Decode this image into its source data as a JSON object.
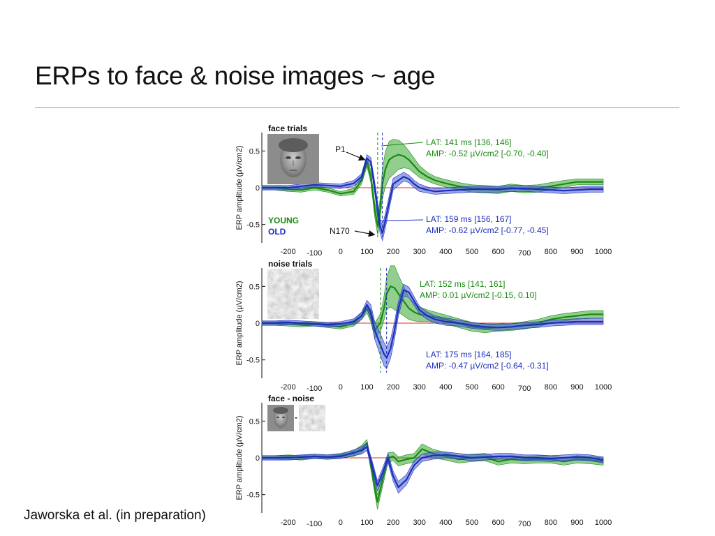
{
  "slide": {
    "title": "ERPs to face & noise images ~ age",
    "citation": "Jaworska et al. (in preparation)"
  },
  "colors": {
    "young": "#1a8a12",
    "young_fill": "#39a832",
    "old": "#1b2fbd",
    "old_fill": "#4b5fd6",
    "zero_line": "#e0302a"
  },
  "chart_data": [
    {
      "type": "line",
      "title": "face trials",
      "image": "face-thumbnail",
      "ylabel": "ERP amplitude (µV/cm2)",
      "xlim": [
        -300,
        1000
      ],
      "ylim": [
        -0.75,
        0.75
      ],
      "x_ticks": [
        -200,
        -100,
        0,
        100,
        200,
        300,
        400,
        500,
        600,
        700,
        800,
        900,
        1000
      ],
      "y_ticks": [
        0.5,
        0,
        -0.5
      ],
      "y_tick_labels": [
        "0.5",
        "0",
        "-0.5"
      ],
      "x": [
        -300,
        -250,
        -200,
        -150,
        -100,
        -50,
        0,
        50,
        80,
        100,
        115,
        130,
        141,
        150,
        159,
        170,
        185,
        200,
        220,
        240,
        260,
        280,
        300,
        330,
        360,
        400,
        450,
        500,
        550,
        600,
        650,
        700,
        750,
        800,
        850,
        900,
        950,
        1000
      ],
      "series": [
        {
          "name": "YOUNG",
          "color": "#1a8a12",
          "values": [
            0.0,
            0.0,
            -0.02,
            -0.03,
            0.0,
            -0.03,
            -0.08,
            -0.05,
            0.1,
            0.35,
            0.15,
            -0.3,
            -0.52,
            -0.3,
            0.05,
            0.25,
            0.38,
            0.42,
            0.45,
            0.43,
            0.38,
            0.3,
            0.22,
            0.15,
            0.1,
            0.06,
            0.02,
            -0.01,
            -0.02,
            -0.03,
            0.0,
            -0.02,
            -0.01,
            0.02,
            0.05,
            0.08,
            0.08,
            0.08
          ],
          "ci": [
            0.03,
            0.03,
            0.03,
            0.03,
            0.03,
            0.03,
            0.03,
            0.04,
            0.05,
            0.06,
            0.08,
            0.1,
            0.12,
            0.15,
            0.2,
            0.24,
            0.25,
            0.24,
            0.2,
            0.16,
            0.12,
            0.1,
            0.08,
            0.06,
            0.05,
            0.05,
            0.05,
            0.05,
            0.05,
            0.05,
            0.05,
            0.05,
            0.05,
            0.05,
            0.05,
            0.04,
            0.04,
            0.04
          ]
        },
        {
          "name": "OLD",
          "color": "#1b2fbd",
          "values": [
            0.0,
            0.0,
            0.0,
            0.02,
            0.04,
            0.03,
            0.02,
            0.06,
            0.15,
            0.4,
            0.35,
            0.0,
            -0.3,
            -0.52,
            -0.62,
            -0.45,
            -0.2,
            0.05,
            0.1,
            0.15,
            0.12,
            0.05,
            0.0,
            -0.03,
            -0.05,
            -0.04,
            -0.03,
            -0.02,
            -0.02,
            -0.02,
            -0.01,
            -0.01,
            -0.02,
            -0.03,
            -0.04,
            -0.03,
            -0.02,
            -0.02
          ],
          "ci": [
            0.03,
            0.03,
            0.03,
            0.03,
            0.03,
            0.03,
            0.03,
            0.04,
            0.04,
            0.05,
            0.06,
            0.08,
            0.1,
            0.1,
            0.1,
            0.1,
            0.09,
            0.08,
            0.07,
            0.06,
            0.05,
            0.05,
            0.05,
            0.04,
            0.04,
            0.04,
            0.04,
            0.04,
            0.04,
            0.04,
            0.04,
            0.04,
            0.04,
            0.04,
            0.04,
            0.04,
            0.04,
            0.04
          ]
        }
      ],
      "latency_markers": [
        {
          "x": 141,
          "color": "#1a8a12"
        },
        {
          "x": 159,
          "color": "#1b2fbd"
        }
      ],
      "annotations": [
        {
          "text": "P1",
          "color": "#111111",
          "arrow_to_x": 100,
          "arrow_to_y": 0.38
        },
        {
          "text": "N170",
          "color": "#111111",
          "arrow_to_x": 145,
          "arrow_to_y": -0.62
        },
        {
          "lines": [
            "LAT: 141 ms [136, 146]",
            "AMP: -0.52 µV/cm2 [-0.70, -0.40]"
          ],
          "color": "#1a8a12",
          "pointer_x": 155,
          "pointer_y": 0.62
        },
        {
          "lines": [
            "LAT: 159 ms [156, 167]",
            "AMP: -0.62 µV/cm2 [-0.77, -0.45]"
          ],
          "color": "#1b2fbd",
          "pointer_x": 165,
          "pointer_y": -0.45
        }
      ],
      "legend": [
        {
          "label": "YOUNG",
          "color": "#1a8a12"
        },
        {
          "label": "OLD",
          "color": "#1b2fbd"
        }
      ]
    },
    {
      "type": "line",
      "title": "noise trials",
      "image": "noise-thumbnail",
      "ylabel": "ERP amplitude (µV/cm2)",
      "xlim": [
        -300,
        1000
      ],
      "ylim": [
        -0.75,
        0.75
      ],
      "x_ticks": [
        -200,
        -100,
        0,
        100,
        200,
        300,
        400,
        500,
        600,
        700,
        800,
        900,
        1000
      ],
      "y_ticks": [
        0.5,
        0,
        -0.5
      ],
      "y_tick_labels": [
        "0.5",
        "0",
        "-0.5"
      ],
      "x": [
        -300,
        -250,
        -200,
        -150,
        -100,
        -50,
        0,
        50,
        80,
        100,
        115,
        130,
        152,
        165,
        175,
        190,
        205,
        220,
        240,
        260,
        280,
        300,
        330,
        360,
        400,
        450,
        500,
        550,
        600,
        650,
        700,
        750,
        800,
        850,
        900,
        950,
        1000
      ],
      "series": [
        {
          "name": "YOUNG",
          "color": "#1a8a12",
          "values": [
            0.0,
            0.0,
            -0.01,
            -0.02,
            -0.01,
            -0.03,
            -0.05,
            0.0,
            0.1,
            0.2,
            0.1,
            -0.1,
            0.01,
            0.2,
            0.4,
            0.5,
            0.48,
            0.4,
            0.3,
            0.2,
            0.15,
            0.12,
            0.1,
            0.08,
            0.05,
            0.0,
            -0.05,
            -0.07,
            -0.06,
            -0.05,
            -0.03,
            0.0,
            0.05,
            0.08,
            0.1,
            0.12,
            0.12
          ],
          "ci": [
            0.03,
            0.03,
            0.03,
            0.03,
            0.03,
            0.03,
            0.03,
            0.04,
            0.05,
            0.06,
            0.08,
            0.1,
            0.12,
            0.16,
            0.22,
            0.28,
            0.3,
            0.25,
            0.2,
            0.15,
            0.12,
            0.1,
            0.08,
            0.07,
            0.06,
            0.06,
            0.06,
            0.06,
            0.05,
            0.05,
            0.05,
            0.05,
            0.05,
            0.05,
            0.05,
            0.05,
            0.05
          ]
        },
        {
          "name": "OLD",
          "color": "#1b2fbd",
          "values": [
            0.0,
            0.0,
            0.01,
            0.0,
            -0.01,
            -0.02,
            -0.01,
            0.02,
            0.1,
            0.25,
            0.15,
            -0.1,
            -0.3,
            -0.42,
            -0.47,
            -0.35,
            -0.1,
            0.2,
            0.45,
            0.42,
            0.3,
            0.18,
            0.1,
            0.05,
            0.02,
            0.0,
            -0.03,
            -0.05,
            -0.06,
            -0.05,
            -0.03,
            -0.02,
            0.0,
            0.01,
            0.02,
            0.02,
            0.02
          ],
          "ci": [
            0.03,
            0.03,
            0.03,
            0.03,
            0.03,
            0.03,
            0.03,
            0.04,
            0.05,
            0.06,
            0.1,
            0.12,
            0.15,
            0.16,
            0.15,
            0.13,
            0.12,
            0.1,
            0.08,
            0.07,
            0.06,
            0.05,
            0.05,
            0.05,
            0.05,
            0.04,
            0.04,
            0.04,
            0.04,
            0.04,
            0.04,
            0.04,
            0.04,
            0.04,
            0.04,
            0.04,
            0.04
          ]
        }
      ],
      "latency_markers": [
        {
          "x": 152,
          "color": "#1a8a12"
        },
        {
          "x": 175,
          "color": "#1b2fbd"
        }
      ],
      "annotations": [
        {
          "lines": [
            "LAT: 152 ms [141, 161]",
            "AMP: 0.01 µV/cm2 [-0.15, 0.10]"
          ],
          "color": "#1a8a12"
        },
        {
          "lines": [
            "LAT: 175 ms [164, 185]",
            "AMP: -0.47 µV/cm2 [-0.64, -0.31]"
          ],
          "color": "#1b2fbd"
        }
      ]
    },
    {
      "type": "line",
      "title": "face - noise",
      "image": "face-minus-noise-thumbnails",
      "ylabel": "ERP amplitude (µV/cm2)",
      "xlim": [
        -300,
        1000
      ],
      "ylim": [
        -0.75,
        0.75
      ],
      "x_ticks": [
        -200,
        -100,
        0,
        100,
        200,
        300,
        400,
        500,
        600,
        700,
        800,
        900,
        1000
      ],
      "y_ticks": [
        0.5,
        0,
        -0.5
      ],
      "y_tick_labels": [
        "0.5",
        "0",
        "-0.5"
      ],
      "x": [
        -300,
        -250,
        -200,
        -150,
        -100,
        -50,
        0,
        50,
        80,
        100,
        120,
        140,
        160,
        180,
        200,
        220,
        250,
        280,
        310,
        350,
        400,
        450,
        500,
        550,
        600,
        650,
        700,
        750,
        800,
        850,
        900,
        950,
        1000
      ],
      "series": [
        {
          "name": "YOUNG",
          "color": "#1a8a12",
          "values": [
            0.0,
            0.0,
            0.01,
            0.0,
            0.02,
            0.01,
            0.03,
            0.06,
            0.12,
            0.2,
            -0.2,
            -0.6,
            -0.3,
            0.0,
            0.02,
            -0.05,
            -0.02,
            0.0,
            0.12,
            0.06,
            0.02,
            -0.02,
            0.0,
            0.01,
            -0.05,
            -0.02,
            -0.03,
            -0.02,
            -0.02,
            -0.05,
            -0.02,
            -0.03,
            -0.05
          ],
          "ci": [
            0.03,
            0.03,
            0.03,
            0.03,
            0.03,
            0.03,
            0.03,
            0.04,
            0.05,
            0.05,
            0.07,
            0.1,
            0.09,
            0.07,
            0.06,
            0.06,
            0.06,
            0.06,
            0.07,
            0.06,
            0.05,
            0.05,
            0.05,
            0.05,
            0.05,
            0.05,
            0.05,
            0.05,
            0.05,
            0.05,
            0.05,
            0.05,
            0.05
          ]
        },
        {
          "name": "OLD",
          "color": "#1b2fbd",
          "values": [
            0.0,
            0.0,
            0.0,
            0.01,
            0.02,
            0.01,
            0.02,
            0.07,
            0.1,
            0.15,
            -0.1,
            -0.38,
            -0.2,
            0.0,
            -0.25,
            -0.4,
            -0.3,
            -0.1,
            0.0,
            0.03,
            0.04,
            0.02,
            0.0,
            0.01,
            0.02,
            0.02,
            0.0,
            0.0,
            -0.01,
            0.0,
            0.01,
            0.0,
            -0.03
          ],
          "ci": [
            0.03,
            0.03,
            0.03,
            0.03,
            0.03,
            0.03,
            0.03,
            0.04,
            0.05,
            0.05,
            0.06,
            0.07,
            0.06,
            0.06,
            0.07,
            0.08,
            0.07,
            0.06,
            0.05,
            0.05,
            0.04,
            0.04,
            0.04,
            0.04,
            0.04,
            0.04,
            0.04,
            0.04,
            0.04,
            0.04,
            0.04,
            0.04,
            0.04
          ]
        }
      ]
    }
  ]
}
